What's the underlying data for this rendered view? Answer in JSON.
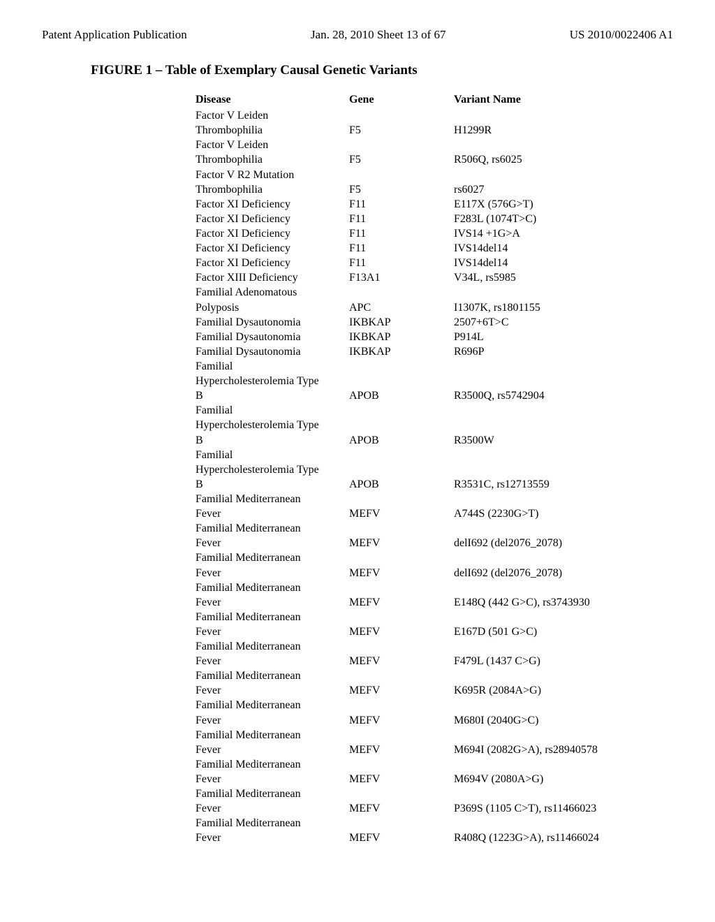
{
  "header": {
    "left": "Patent Application Publication",
    "center": "Jan. 28, 2010  Sheet 13 of 67",
    "right": "US 2010/0022406 A1"
  },
  "figure_title": "FIGURE 1 – Table of Exemplary Causal Genetic Variants",
  "columns": {
    "disease": "Disease",
    "gene": "Gene",
    "variant": "Variant Name"
  },
  "rows": [
    {
      "disease": "Factor V Leiden",
      "gene": "",
      "variant": ""
    },
    {
      "disease": "Thrombophilia",
      "gene": "F5",
      "variant": "H1299R"
    },
    {
      "disease": "Factor V Leiden",
      "gene": "",
      "variant": ""
    },
    {
      "disease": "Thrombophilia",
      "gene": "F5",
      "variant": "R506Q, rs6025"
    },
    {
      "disease": "Factor V R2 Mutation",
      "gene": "",
      "variant": ""
    },
    {
      "disease": "Thrombophilia",
      "gene": "F5",
      "variant": "rs6027"
    },
    {
      "disease": "Factor XI Deficiency",
      "gene": "F11",
      "variant": "E117X (576G>T)"
    },
    {
      "disease": "Factor XI Deficiency",
      "gene": "F11",
      "variant": "F283L (1074T>C)"
    },
    {
      "disease": "Factor XI Deficiency",
      "gene": "F11",
      "variant": "IVS14 +1G>A"
    },
    {
      "disease": "Factor XI Deficiency",
      "gene": "F11",
      "variant": "IVS14del14"
    },
    {
      "disease": "Factor XI Deficiency",
      "gene": "F11",
      "variant": "IVS14del14"
    },
    {
      "disease": "Factor XIII Deficiency",
      "gene": "F13A1",
      "variant": "V34L, rs5985"
    },
    {
      "disease": "Familial Adenomatous",
      "gene": "",
      "variant": ""
    },
    {
      "disease": "Polyposis",
      "gene": "APC",
      "variant": "I1307K, rs1801155"
    },
    {
      "disease": "Familial Dysautonomia",
      "gene": "IKBKAP",
      "variant": "2507+6T>C"
    },
    {
      "disease": "Familial Dysautonomia",
      "gene": "IKBKAP",
      "variant": "P914L"
    },
    {
      "disease": "Familial Dysautonomia",
      "gene": "IKBKAP",
      "variant": "R696P"
    },
    {
      "disease": "Familial",
      "gene": "",
      "variant": ""
    },
    {
      "disease": "Hypercholesterolemia Type",
      "gene": "",
      "variant": ""
    },
    {
      "disease": "B",
      "gene": "APOB",
      "variant": "R3500Q, rs5742904"
    },
    {
      "disease": "Familial",
      "gene": "",
      "variant": ""
    },
    {
      "disease": "Hypercholesterolemia Type",
      "gene": "",
      "variant": ""
    },
    {
      "disease": "B",
      "gene": "APOB",
      "variant": "R3500W"
    },
    {
      "disease": "Familial",
      "gene": "",
      "variant": ""
    },
    {
      "disease": "Hypercholesterolemia Type",
      "gene": "",
      "variant": ""
    },
    {
      "disease": "B",
      "gene": "APOB",
      "variant": "R3531C, rs12713559"
    },
    {
      "disease": "Familial Mediterranean",
      "gene": "",
      "variant": ""
    },
    {
      "disease": "Fever",
      "gene": "MEFV",
      "variant": "A744S (2230G>T)"
    },
    {
      "disease": "Familial Mediterranean",
      "gene": "",
      "variant": ""
    },
    {
      "disease": "Fever",
      "gene": "MEFV",
      "variant": "delI692 (del2076_2078)"
    },
    {
      "disease": "Familial Mediterranean",
      "gene": "",
      "variant": ""
    },
    {
      "disease": "Fever",
      "gene": "MEFV",
      "variant": "delI692 (del2076_2078)"
    },
    {
      "disease": "Familial Mediterranean",
      "gene": "",
      "variant": ""
    },
    {
      "disease": "Fever",
      "gene": "MEFV",
      "variant": "E148Q (442 G>C), rs3743930"
    },
    {
      "disease": "Familial Mediterranean",
      "gene": "",
      "variant": ""
    },
    {
      "disease": "Fever",
      "gene": "MEFV",
      "variant": "E167D (501 G>C)"
    },
    {
      "disease": "Familial Mediterranean",
      "gene": "",
      "variant": ""
    },
    {
      "disease": "Fever",
      "gene": "MEFV",
      "variant": "F479L (1437 C>G)"
    },
    {
      "disease": "Familial Mediterranean",
      "gene": "",
      "variant": ""
    },
    {
      "disease": "Fever",
      "gene": "MEFV",
      "variant": "K695R (2084A>G)"
    },
    {
      "disease": "Familial Mediterranean",
      "gene": "",
      "variant": ""
    },
    {
      "disease": "Fever",
      "gene": "MEFV",
      "variant": "M680I (2040G>C)"
    },
    {
      "disease": "Familial Mediterranean",
      "gene": "",
      "variant": ""
    },
    {
      "disease": "Fever",
      "gene": "MEFV",
      "variant": "M694I (2082G>A), rs28940578"
    },
    {
      "disease": "Familial Mediterranean",
      "gene": "",
      "variant": ""
    },
    {
      "disease": "Fever",
      "gene": "MEFV",
      "variant": "M694V (2080A>G)"
    },
    {
      "disease": "Familial Mediterranean",
      "gene": "",
      "variant": ""
    },
    {
      "disease": "Fever",
      "gene": "MEFV",
      "variant": "P369S (1105 C>T), rs11466023"
    },
    {
      "disease": "Familial Mediterranean",
      "gene": "",
      "variant": ""
    },
    {
      "disease": "Fever",
      "gene": "MEFV",
      "variant": "R408Q (1223G>A), rs11466024"
    }
  ]
}
